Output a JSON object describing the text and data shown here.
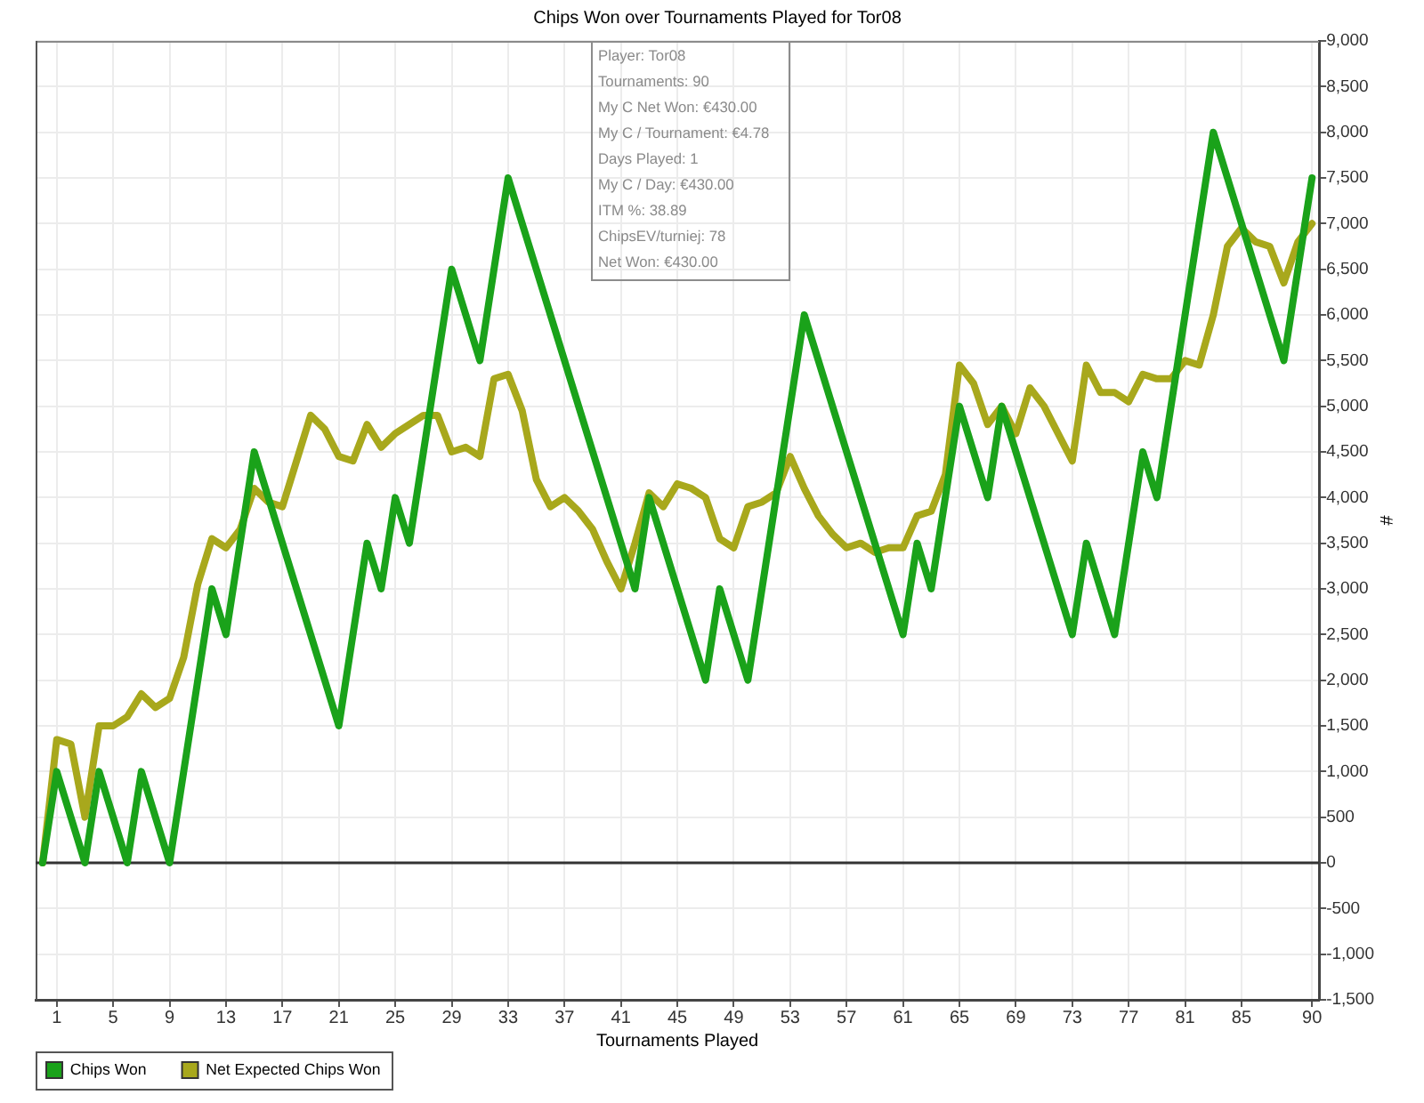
{
  "chart_data": {
    "type": "line",
    "title": "Chips Won over Tournaments Played for Tor08",
    "xlabel": "Tournaments Played",
    "ylabel": "#",
    "series": [
      {
        "name": "Chips Won",
        "color": "#1aa21a",
        "x": [
          0,
          1,
          3,
          4,
          6,
          7,
          9,
          12,
          13,
          15,
          21,
          23,
          24,
          25,
          26,
          29,
          31,
          33,
          42,
          43,
          47,
          48,
          50,
          54,
          61,
          62,
          63,
          65,
          67,
          68,
          73,
          74,
          76,
          78,
          79,
          83,
          88,
          90
        ],
        "values": [
          0,
          1000,
          0,
          1000,
          0,
          1000,
          0,
          3000,
          2500,
          4500,
          1500,
          3500,
          3000,
          4000,
          3500,
          6500,
          5500,
          7500,
          3000,
          4000,
          2000,
          3000,
          2000,
          6000,
          2500,
          3500,
          3000,
          5000,
          4000,
          5000,
          2500,
          3500,
          2500,
          4500,
          4000,
          8000,
          5500,
          7500
        ]
      },
      {
        "name": "Net Expected Chips Won",
        "color": "#a8a81c",
        "x": [
          0,
          1,
          2,
          3,
          4,
          5,
          6,
          7,
          8,
          9,
          10,
          11,
          12,
          13,
          14,
          15,
          16,
          17,
          18,
          19,
          20,
          21,
          22,
          23,
          24,
          25,
          26,
          27,
          28,
          29,
          30,
          31,
          32,
          33,
          34,
          35,
          36,
          37,
          38,
          39,
          40,
          41,
          42,
          43,
          44,
          45,
          46,
          47,
          48,
          49,
          50,
          51,
          52,
          53,
          54,
          55,
          56,
          57,
          58,
          59,
          60,
          61,
          62,
          63,
          64,
          65,
          66,
          67,
          68,
          69,
          70,
          71,
          72,
          73,
          74,
          75,
          76,
          77,
          78,
          79,
          80,
          81,
          82,
          83,
          84,
          85,
          86,
          87,
          88,
          89,
          90
        ],
        "values": [
          0,
          1350,
          1300,
          500,
          1500,
          1500,
          1600,
          1850,
          1700,
          1800,
          2250,
          3050,
          3550,
          3450,
          3650,
          4100,
          3950,
          3900,
          4400,
          4900,
          4750,
          4450,
          4400,
          4800,
          4550,
          4700,
          4800,
          4900,
          4900,
          4500,
          4550,
          4450,
          5300,
          5350,
          4950,
          4200,
          3900,
          4000,
          3850,
          3650,
          3300,
          3000,
          3500,
          4050,
          3900,
          4150,
          4100,
          4000,
          3550,
          3450,
          3900,
          3950,
          4050,
          4450,
          4100,
          3800,
          3600,
          3450,
          3500,
          3400,
          3450,
          3450,
          3800,
          3850,
          4250,
          5450,
          5250,
          4800,
          5000,
          4700,
          5200,
          5000,
          4700,
          4400,
          5450,
          5150,
          5150,
          5050,
          5350,
          5300,
          5300,
          5500,
          5450,
          6000,
          6750,
          6950,
          6800,
          6750,
          6350,
          6800,
          7000
        ]
      }
    ],
    "xlim": [
      -0.5,
      90.5
    ],
    "xticks": [
      1,
      5,
      9,
      13,
      17,
      21,
      25,
      29,
      33,
      37,
      41,
      45,
      49,
      53,
      57,
      61,
      65,
      69,
      73,
      77,
      81,
      85,
      90
    ],
    "ylim": [
      -1500,
      9000
    ],
    "yticks": [
      {
        "value": -1500,
        "label": "-1,500"
      },
      {
        "value": -1000,
        "label": "-1,000"
      },
      -500,
      0,
      500,
      {
        "value": 1000,
        "label": "1,000"
      },
      {
        "value": 1500,
        "label": "1,500"
      },
      {
        "value": 2000,
        "label": "2,000"
      },
      {
        "value": 2500,
        "label": "2,500"
      },
      {
        "value": 3000,
        "label": "3,000"
      },
      {
        "value": 3500,
        "label": "3,500"
      },
      {
        "value": 4000,
        "label": "4,000"
      },
      {
        "value": 4500,
        "label": "4,500"
      },
      {
        "value": 5000,
        "label": "5,000"
      },
      {
        "value": 5500,
        "label": "5,500"
      },
      {
        "value": 6000,
        "label": "6,000"
      },
      {
        "value": 6500,
        "label": "6,500"
      },
      {
        "value": 7000,
        "label": "7,000"
      },
      {
        "value": 7500,
        "label": "7,500"
      },
      {
        "value": 8000,
        "label": "8,000"
      },
      {
        "value": 8500,
        "label": "8,500"
      },
      {
        "value": 9000,
        "label": "9,000"
      }
    ],
    "ref_lines": [
      {
        "axis": "y",
        "value": 0,
        "color": "#333333"
      }
    ],
    "annotations": [
      "Player: Tor08",
      "Tournaments: 90",
      "My C Net Won: €430.00",
      "My C / Tournament: €4.78",
      "Days Played: 1",
      "My C / Day: €430.00",
      "ITM %: 38.89",
      "ChipsEV/turniej: 78",
      "Net Won: €430.00"
    ],
    "grid": true,
    "legend": "bottom left",
    "marker": "none"
  }
}
